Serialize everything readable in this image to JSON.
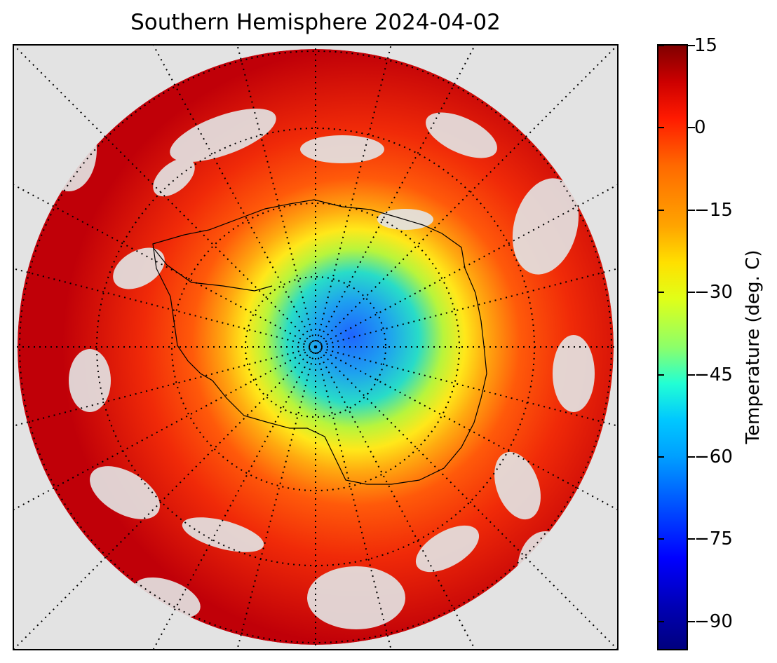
{
  "title": "Southern Hemisphere 2024-04-02",
  "colorbar": {
    "label": "Temperature (deg. C)",
    "ticks": [
      "15",
      "0",
      "−15",
      "−30",
      "−45",
      "−60",
      "−75",
      "−90"
    ],
    "tick_values": [
      15,
      0,
      -15,
      -30,
      -45,
      -60,
      -75,
      -90
    ],
    "range": [
      -95,
      15
    ],
    "colormap": "jet"
  },
  "map": {
    "projection": "south-polar-stereographic",
    "background_color": "#e3e3e3",
    "graticule": "dotted"
  }
}
